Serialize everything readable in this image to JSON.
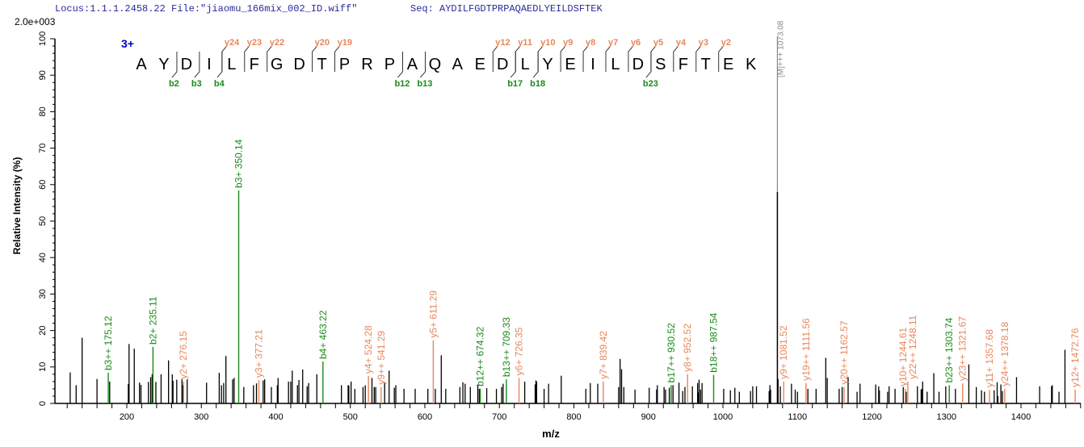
{
  "header": {
    "locus": "Locus:1.1.1.2458.22 File:\"jiaomu_166mix_002_ID.wiff\"",
    "seq": "Seq: AYDILFGDTPRPAQAEDLYEILDSFTEK",
    "scale": "2.0e+003"
  },
  "colors": {
    "b_ion": "#1a8a1a",
    "y_ion": "#e8865a",
    "precursor": "#888888",
    "peak": "#000000",
    "charge": "#0000cc"
  },
  "chart_data": {
    "type": "bar",
    "xlabel": "m/z",
    "ylabel": "Relative  Intensity (%)",
    "xlim": [
      105,
      1482
    ],
    "ylim": [
      0,
      100
    ],
    "xticks": [
      200,
      300,
      400,
      500,
      600,
      700,
      800,
      900,
      1000,
      1100,
      1200,
      1300,
      1400
    ],
    "yticks": [
      0,
      10,
      20,
      30,
      40,
      50,
      60,
      70,
      80,
      90,
      100
    ],
    "grid": false,
    "sequence": "AYDILFGDTPRPAQAEDLYEILDSFTEK",
    "charge_label": "3+",
    "b_markers": [
      2,
      3,
      4,
      12,
      13,
      17,
      18,
      23
    ],
    "y_markers": [
      24,
      23,
      22,
      20,
      19,
      12,
      11,
      10,
      9,
      8,
      7,
      6,
      5,
      4,
      3,
      2
    ],
    "precursor": {
      "label": "[M]+++ 1073.08",
      "mz": 1073.08,
      "intensity": 58
    },
    "annotated_peaks": [
      {
        "ion": "b",
        "label": "b3++ 175.12",
        "mz": 175.12,
        "intensity": 8.4
      },
      {
        "ion": "b",
        "label": "b2+ 235.11",
        "mz": 235.11,
        "intensity": 15.5
      },
      {
        "ion": "y",
        "label": "y2+ 276.15",
        "mz": 276.15,
        "intensity": 6
      },
      {
        "ion": "b",
        "label": "b3+ 350.14",
        "mz": 350.14,
        "intensity": 58.4
      },
      {
        "ion": "y",
        "label": "y3+ 377.21",
        "mz": 377.21,
        "intensity": 6.4
      },
      {
        "ion": "b",
        "label": "b4+ 463.22",
        "mz": 463.22,
        "intensity": 11.5
      },
      {
        "ion": "y",
        "label": "y4+ 524.28",
        "mz": 524.28,
        "intensity": 7.5
      },
      {
        "ion": "y",
        "label": "y9++ 541.29",
        "mz": 541.29,
        "intensity": 4.5
      },
      {
        "ion": "y",
        "label": "y5+ 611.29",
        "mz": 611.29,
        "intensity": 17.3
      },
      {
        "ion": "b",
        "label": "b12++ 674.32",
        "mz": 674.32,
        "intensity": 4
      },
      {
        "ion": "b",
        "label": "b13++ 709.33",
        "mz": 709.33,
        "intensity": 6.6
      },
      {
        "ion": "y",
        "label": "y6+ 726.35",
        "mz": 726.35,
        "intensity": 7
      },
      {
        "ion": "y",
        "label": "y7+ 839.42",
        "mz": 839.42,
        "intensity": 6
      },
      {
        "ion": "b",
        "label": "b17++ 930.52",
        "mz": 930.52,
        "intensity": 5
      },
      {
        "ion": "y",
        "label": "y8+ 952.52",
        "mz": 952.52,
        "intensity": 8
      },
      {
        "ion": "b",
        "label": "b18++ 987.54",
        "mz": 987.54,
        "intensity": 7.8
      },
      {
        "ion": "y",
        "label": "y9+ 1081.52",
        "mz": 1081.52,
        "intensity": 6
      },
      {
        "ion": "y",
        "label": "y19++ 1111.56",
        "mz": 1111.56,
        "intensity": 5.6
      },
      {
        "ion": "y",
        "label": "y20++ 1162.57",
        "mz": 1162.57,
        "intensity": 4.5
      },
      {
        "ion": "y",
        "label": "y10+ 1244.61",
        "mz": 1244.61,
        "intensity": 4
      },
      {
        "ion": "y",
        "label": "y22++ 1248.11",
        "mz": 1248.11,
        "intensity": 6
      },
      {
        "ion": "b",
        "label": "b23++ 1303.74",
        "mz": 1303.74,
        "intensity": 5
      },
      {
        "ion": "y",
        "label": "y23++ 1321.67",
        "mz": 1321.67,
        "intensity": 5.5
      },
      {
        "ion": "y",
        "label": "y11+ 1357.68",
        "mz": 1357.68,
        "intensity": 3.7
      },
      {
        "ion": "y",
        "label": "y24++ 1378.18",
        "mz": 1378.18,
        "intensity": 4
      },
      {
        "ion": "y",
        "label": "y12+ 1472.76",
        "mz": 1472.76,
        "intensity": 3.8
      }
    ],
    "peaks": [
      [
        124,
        8.5
      ],
      [
        132,
        5
      ],
      [
        140,
        18
      ],
      [
        160,
        6.7
      ],
      [
        177,
        6
      ],
      [
        202,
        5.3
      ],
      [
        203,
        16.3
      ],
      [
        210,
        15
      ],
      [
        217,
        5.7
      ],
      [
        219,
        5.1
      ],
      [
        229,
        5.9
      ],
      [
        232,
        7.2
      ],
      [
        234,
        8
      ],
      [
        239,
        5.9
      ],
      [
        246,
        8
      ],
      [
        256,
        11.8
      ],
      [
        261,
        8
      ],
      [
        262,
        6.2
      ],
      [
        267,
        6.5
      ],
      [
        274,
        6.6
      ],
      [
        275,
        5
      ],
      [
        281,
        6.6
      ],
      [
        307,
        5.7
      ],
      [
        324,
        8.4
      ],
      [
        327,
        5
      ],
      [
        330,
        5.6
      ],
      [
        333,
        13
      ],
      [
        342,
        6.6
      ],
      [
        344,
        7
      ],
      [
        357,
        4.5
      ],
      [
        370,
        5
      ],
      [
        374,
        5.5
      ],
      [
        383,
        6.3
      ],
      [
        385,
        6.6
      ],
      [
        394,
        4.5
      ],
      [
        402,
        5
      ],
      [
        403,
        7
      ],
      [
        417,
        6
      ],
      [
        420,
        6
      ],
      [
        422,
        9
      ],
      [
        429,
        5
      ],
      [
        431,
        6.4
      ],
      [
        436,
        9.3
      ],
      [
        442,
        4.7
      ],
      [
        444,
        5.6
      ],
      [
        455,
        8
      ],
      [
        488,
        5
      ],
      [
        497,
        5
      ],
      [
        498,
        4.9
      ],
      [
        501,
        6
      ],
      [
        506,
        4
      ],
      [
        517,
        4.5
      ],
      [
        520,
        5
      ],
      [
        529,
        7
      ],
      [
        532,
        4.5
      ],
      [
        534,
        4.5
      ],
      [
        546,
        5.6
      ],
      [
        552,
        9
      ],
      [
        559,
        4.3
      ],
      [
        561,
        5
      ],
      [
        572,
        4
      ],
      [
        587,
        4
      ],
      [
        604,
        4
      ],
      [
        614,
        4
      ],
      [
        622,
        13.2
      ],
      [
        628,
        4
      ],
      [
        647,
        4.5
      ],
      [
        651,
        5.8
      ],
      [
        654,
        5.4
      ],
      [
        661,
        4.5
      ],
      [
        671,
        5.2
      ],
      [
        673,
        4
      ],
      [
        683,
        4.2
      ],
      [
        696,
        4
      ],
      [
        703,
        4.5
      ],
      [
        705,
        5.4
      ],
      [
        734,
        6
      ],
      [
        748,
        5.2
      ],
      [
        749,
        6.3
      ],
      [
        750,
        6
      ],
      [
        760,
        4
      ],
      [
        766,
        5.4
      ],
      [
        783,
        7.6
      ],
      [
        816,
        4
      ],
      [
        822,
        5.6
      ],
      [
        832,
        5.4
      ],
      [
        860,
        4.5
      ],
      [
        862,
        12.2
      ],
      [
        864,
        9.4
      ],
      [
        867,
        4.5
      ],
      [
        882,
        3.8
      ],
      [
        901,
        4.3
      ],
      [
        911,
        3.8
      ],
      [
        912,
        5
      ],
      [
        921,
        4.5
      ],
      [
        923,
        3.8
      ],
      [
        928,
        4.3
      ],
      [
        933,
        5
      ],
      [
        941,
        5.7
      ],
      [
        946,
        3.4
      ],
      [
        949,
        4.5
      ],
      [
        959,
        4.7
      ],
      [
        966,
        5.6
      ],
      [
        967,
        3
      ],
      [
        968,
        6.5
      ],
      [
        970,
        3.8
      ],
      [
        972,
        5.6
      ],
      [
        1001,
        4
      ],
      [
        1010,
        3.6
      ],
      [
        1016,
        4.3
      ],
      [
        1022,
        3.2
      ],
      [
        1037,
        3.4
      ],
      [
        1040,
        4.7
      ],
      [
        1045,
        4.7
      ],
      [
        1062,
        3.4
      ],
      [
        1063,
        5
      ],
      [
        1064,
        3.8
      ],
      [
        1074,
        6.7
      ],
      [
        1077,
        4.7
      ],
      [
        1092,
        5.4
      ],
      [
        1097,
        3.8
      ],
      [
        1100,
        3.2
      ],
      [
        1114,
        4
      ],
      [
        1125,
        4
      ],
      [
        1138,
        12.5
      ],
      [
        1140,
        7
      ],
      [
        1156,
        4
      ],
      [
        1160,
        4.5
      ],
      [
        1168,
        7.2
      ],
      [
        1180,
        3.2
      ],
      [
        1184,
        5.4
      ],
      [
        1205,
        5.2
      ],
      [
        1209,
        4.7
      ],
      [
        1210,
        3.6
      ],
      [
        1221,
        3.2
      ],
      [
        1223,
        4.7
      ],
      [
        1231,
        4
      ],
      [
        1242,
        4.5
      ],
      [
        1246,
        3.2
      ],
      [
        1261,
        4.7
      ],
      [
        1266,
        3.8
      ],
      [
        1267,
        4
      ],
      [
        1268,
        6
      ],
      [
        1274,
        3.2
      ],
      [
        1283,
        8.3
      ],
      [
        1290,
        3.2
      ],
      [
        1299,
        4.7
      ],
      [
        1312,
        4
      ],
      [
        1330,
        10.7
      ],
      [
        1340,
        4.5
      ],
      [
        1347,
        3.6
      ],
      [
        1351,
        3.2
      ],
      [
        1364,
        3.6
      ],
      [
        1368,
        5.8
      ],
      [
        1369,
        2
      ],
      [
        1373,
        5.2
      ],
      [
        1375,
        3.4
      ],
      [
        1394,
        7.2
      ],
      [
        1425,
        4.7
      ],
      [
        1441,
        4.7
      ],
      [
        1442,
        5
      ],
      [
        1451,
        3.2
      ],
      [
        1459,
        14.7
      ]
    ]
  }
}
